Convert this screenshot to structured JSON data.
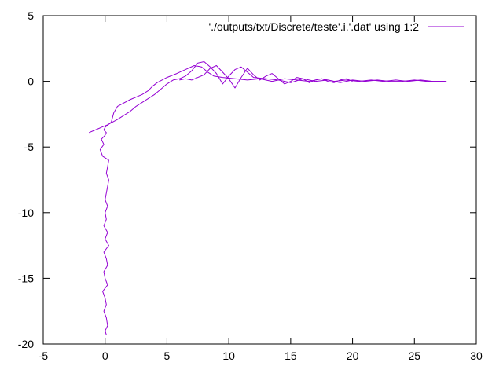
{
  "chart_data": {
    "type": "line",
    "title": "",
    "xlabel": "",
    "ylabel": "",
    "xlim": [
      -5,
      30
    ],
    "ylim": [
      -20,
      5
    ],
    "xticks": [
      -5,
      0,
      5,
      10,
      15,
      20,
      25,
      30
    ],
    "yticks": [
      -20,
      -15,
      -10,
      -5,
      0,
      5
    ],
    "grid": false,
    "legend_position": "top-right",
    "series": [
      {
        "name": "'./outputs/txt/Discrete/teste'.i.'.dat' using 1:2",
        "color": "#9400d3",
        "x": [
          0.1,
          0.0,
          0.2,
          0.1,
          -0.1,
          0.1,
          0.0,
          -0.2,
          0.2,
          0.0,
          -0.1,
          0.2,
          0.1,
          -0.1,
          0.3,
          0.0,
          0.2,
          -0.1,
          0.1,
          0.0,
          0.2,
          0.0,
          0.1,
          0.2,
          0.3,
          0.1,
          0.2,
          0.3,
          -0.2,
          -0.4,
          -0.1,
          -0.3,
          0.0,
          0.1,
          -0.1,
          0.0,
          0.5,
          0.7,
          1.0,
          2.0,
          3.0,
          3.5,
          3.8,
          4.2,
          5.0,
          5.8,
          6.5,
          7.2,
          7.8,
          8.3,
          8.8,
          9.5,
          10.5,
          11.5,
          12.5,
          13.5,
          14.5,
          15.5,
          16.5,
          17.5,
          18.5,
          19.5,
          20.5,
          21.5,
          22.5,
          23.5,
          24.5,
          25.5,
          26.5,
          27.5
        ],
        "y": [
          -19.3,
          -19.0,
          -18.6,
          -18.0,
          -17.5,
          -17.0,
          -16.5,
          -16.0,
          -15.5,
          -15.0,
          -14.5,
          -14.0,
          -13.5,
          -13.0,
          -12.5,
          -12.0,
          -11.5,
          -11.0,
          -10.5,
          -10.0,
          -9.5,
          -9.0,
          -8.5,
          -8.0,
          -7.5,
          -7.0,
          -6.5,
          -6.0,
          -5.7,
          -5.2,
          -4.8,
          -4.4,
          -4.1,
          -3.9,
          -3.7,
          -3.5,
          -3.1,
          -2.4,
          -1.9,
          -1.4,
          -1.0,
          -0.7,
          -0.4,
          -0.1,
          0.3,
          0.6,
          0.9,
          1.2,
          1.1,
          0.7,
          0.4,
          0.3,
          0.2,
          0.1,
          0.2,
          0.0,
          0.2,
          0.1,
          0.0,
          0.2,
          0.0,
          0.1,
          0.0,
          0.1,
          0.0,
          0.1,
          0.0,
          0.1,
          0.0,
          0.0
        ]
      },
      {
        "name": "",
        "color": "#9400d3",
        "x": [
          -1.3,
          -0.8,
          -0.3,
          0.2,
          0.6,
          1.0,
          1.5,
          2.0,
          2.5,
          3.0,
          3.5,
          4.0,
          4.5,
          5.0,
          5.5,
          6.0,
          6.5,
          7.0,
          7.5,
          8.0,
          8.5,
          9.0,
          9.5,
          10.0,
          10.5,
          11.0,
          11.5,
          12.0,
          13.0,
          14.0,
          15.0,
          16.0,
          17.0,
          18.0,
          19.0,
          20.0,
          21.0,
          22.0,
          23.0,
          24.0,
          25.0,
          26.0,
          27.0,
          27.6
        ],
        "y": [
          -3.9,
          -3.7,
          -3.5,
          -3.3,
          -3.1,
          -2.9,
          -2.6,
          -2.3,
          -1.9,
          -1.6,
          -1.3,
          -1.0,
          -0.6,
          -0.2,
          0.1,
          0.2,
          0.4,
          0.8,
          1.4,
          1.5,
          1.1,
          0.6,
          -0.2,
          0.4,
          0.9,
          1.1,
          0.7,
          0.3,
          0.2,
          0.1,
          -0.1,
          0.2,
          0.0,
          0.1,
          -0.1,
          0.1,
          0.0,
          0.1,
          0.0,
          0.0,
          0.1,
          0.0,
          0.0,
          0.0
        ]
      },
      {
        "name": "",
        "color": "#9400d3",
        "x": [
          6.0,
          6.5,
          7.0,
          7.5,
          8.0,
          8.5,
          9.0,
          9.5,
          10.0,
          10.5,
          11.0,
          11.5,
          12.0,
          12.5,
          13.0,
          13.5,
          14.0,
          14.5,
          15.0,
          15.5,
          16.0,
          16.5,
          17.0,
          17.5,
          18.0,
          18.5,
          19.0,
          19.5,
          20.0
        ],
        "y": [
          0.1,
          0.2,
          0.1,
          0.3,
          0.5,
          1.0,
          1.2,
          0.7,
          0.2,
          -0.5,
          0.3,
          1.0,
          0.5,
          0.1,
          0.4,
          0.6,
          0.2,
          -0.2,
          0.0,
          0.3,
          0.2,
          -0.1,
          0.1,
          0.2,
          0.0,
          -0.1,
          0.1,
          0.2,
          0.0
        ]
      }
    ]
  }
}
